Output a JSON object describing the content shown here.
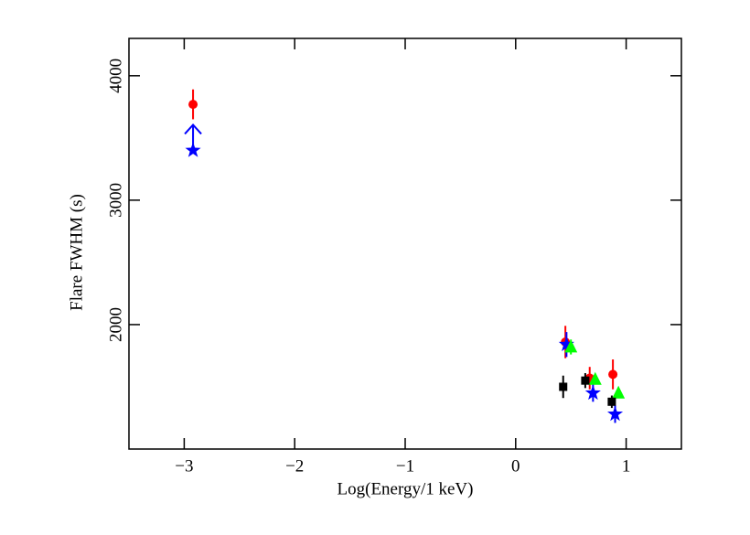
{
  "chart_data": {
    "type": "scatter",
    "x_label": "Log(Energy/1 keV)",
    "y_label": "Flare FWHM (s)",
    "xlim": [
      -3.5,
      1.5
    ],
    "ylim": [
      1000,
      4300
    ],
    "xticks": [
      {
        "value": -3,
        "label": "−3"
      },
      {
        "value": -2,
        "label": "−2"
      },
      {
        "value": -1,
        "label": "−1"
      },
      0,
      1
    ],
    "yticks": [
      2000,
      3000,
      4000
    ],
    "series": [
      {
        "color": "#ff0000",
        "marker": "circle",
        "x": [
          -2.92,
          0.45,
          0.67,
          0.88
        ],
        "values": [
          3770,
          1860,
          1570,
          1600
        ],
        "errors": [
          120,
          130,
          90,
          120
        ]
      },
      {
        "color": "#0000ff",
        "marker": "star",
        "x": [
          -2.92,
          0.46,
          0.7,
          0.9
        ],
        "values": [
          3400,
          1840,
          1450,
          1280
        ],
        "errors": [
          null,
          100,
          70,
          70
        ],
        "limits": [
          "lower",
          null,
          null,
          null
        ]
      },
      {
        "color": "#00ff00",
        "marker": "triangle",
        "x": [
          0.5,
          0.72,
          0.93
        ],
        "values": [
          1820,
          1560,
          1450
        ],
        "errors": [
          60,
          40,
          30
        ]
      },
      {
        "color": "#000000",
        "marker": "square",
        "x": [
          0.43,
          0.63,
          0.87
        ],
        "values": [
          1500,
          1550,
          1380
        ],
        "errors": [
          90,
          60,
          50
        ]
      }
    ]
  }
}
